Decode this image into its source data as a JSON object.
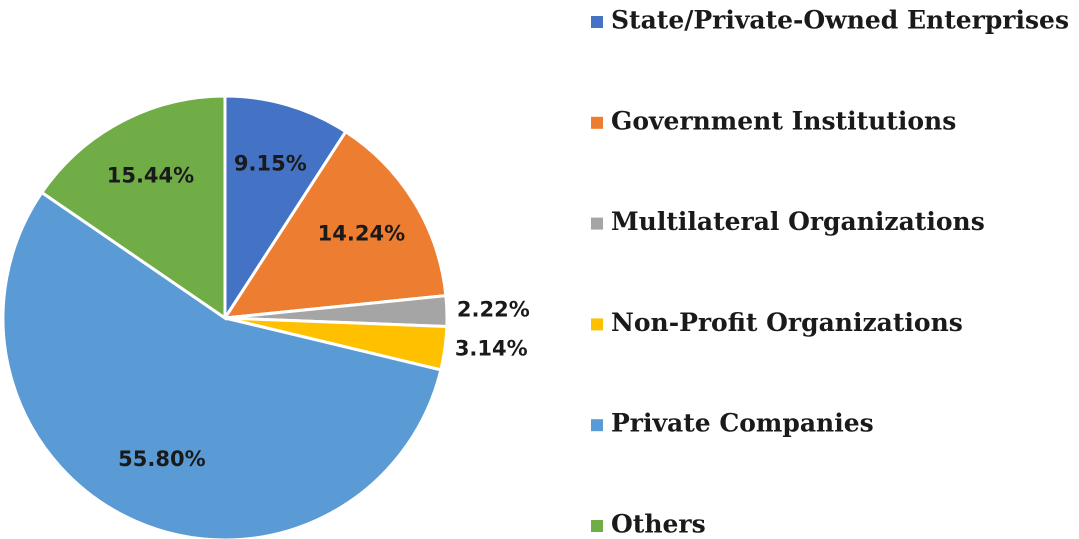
{
  "chart_data": {
    "type": "pie",
    "categories": [
      "State/Private-Owned Enterprises",
      "Government Institutions",
      "Multilateral Organizations",
      "Non-Profit Organizations",
      "Private Companies",
      "Others"
    ],
    "values": [
      9.15,
      14.24,
      2.22,
      3.14,
      55.8,
      15.44
    ],
    "value_labels": [
      "9.15%",
      "14.24%",
      "2.22%",
      "3.14%",
      "55.80%",
      "15.44%"
    ],
    "colors": [
      "#4472c4",
      "#ed7d31",
      "#a5a5a5",
      "#ffc000",
      "#5b9bd5",
      "#70ad47"
    ],
    "legend": "right"
  }
}
